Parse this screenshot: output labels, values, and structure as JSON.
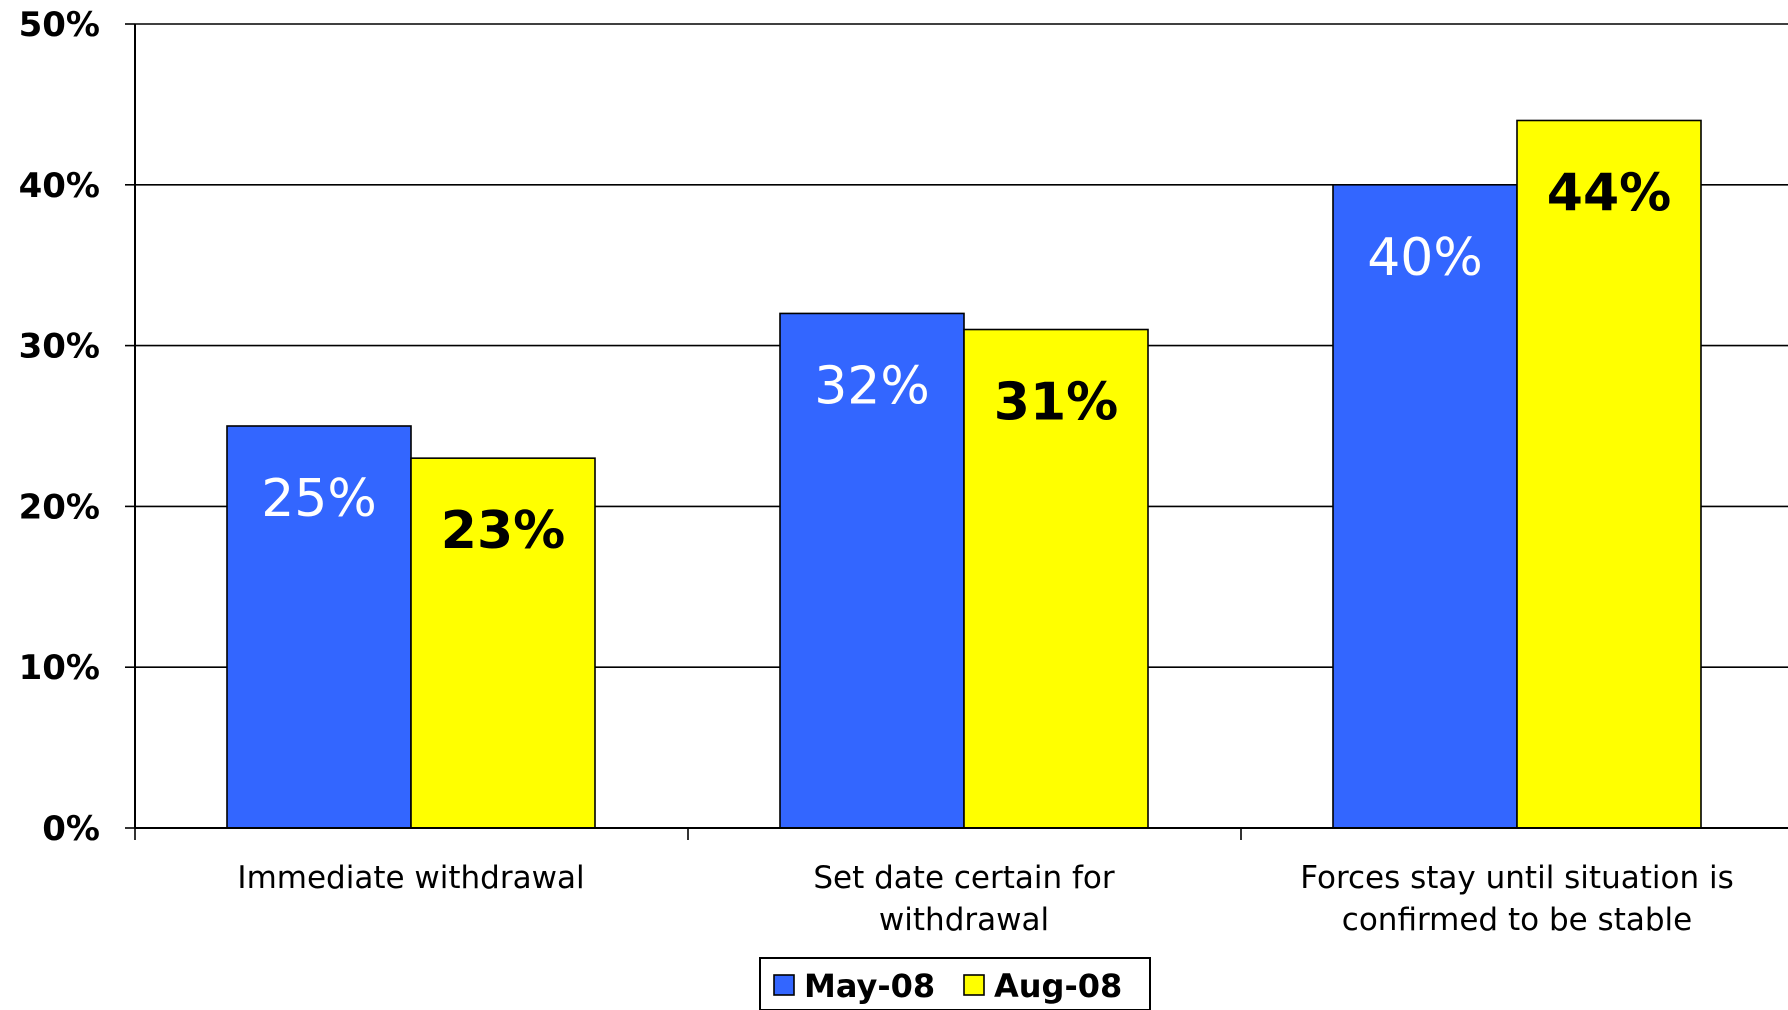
{
  "chart_data": {
    "type": "bar",
    "title": "",
    "xlabel": "",
    "ylabel": "",
    "ylim": [
      0,
      50
    ],
    "yticks": [
      "0%",
      "10%",
      "20%",
      "30%",
      "40%",
      "50%"
    ],
    "grid": true,
    "categories": [
      [
        "Immediate withdrawal"
      ],
      [
        "Set date certain for",
        "withdrawal"
      ],
      [
        "Forces stay until situation is",
        "confirmed to be stable"
      ]
    ],
    "series": [
      {
        "name": "May-08",
        "values": [
          25,
          32,
          40
        ],
        "labels": [
          "25%",
          "32%",
          "40%"
        ],
        "color": "#3366ff",
        "label_color": "#ffffff"
      },
      {
        "name": "Aug-08",
        "values": [
          23,
          31,
          44
        ],
        "labels": [
          "23%",
          "31%",
          "44%"
        ],
        "color": "#ffff00",
        "label_color": "#000000"
      }
    ],
    "legend": {
      "placement": "bottom-center"
    }
  }
}
